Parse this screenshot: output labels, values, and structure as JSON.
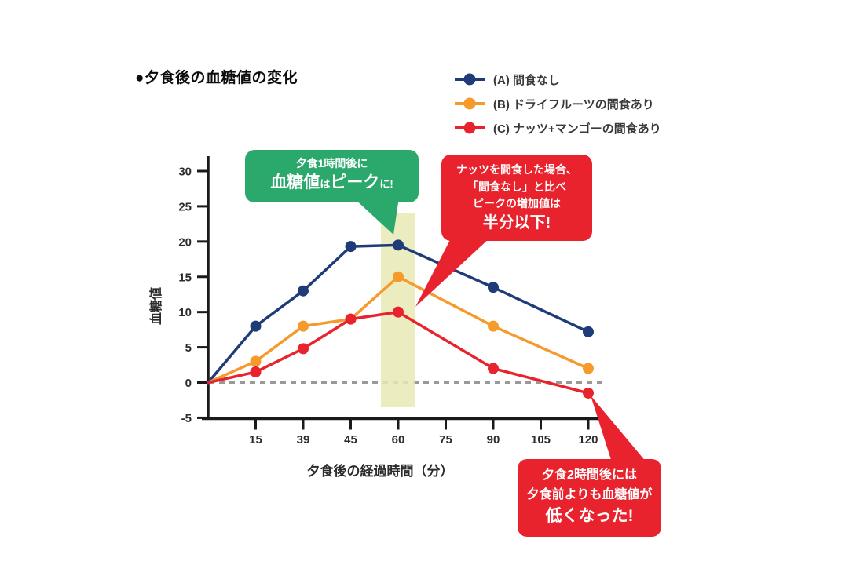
{
  "title": "●夕食後の血糖値の変化",
  "legend": {
    "items": [
      {
        "id": "A",
        "label": "(A) 間食なし",
        "color": "#1f3c78"
      },
      {
        "id": "B",
        "label": "(B) ドライフルーツの間食あり",
        "color": "#f59a2b"
      },
      {
        "id": "C",
        "label": "(C) ナッツ+マンゴーの間食あり",
        "color": "#e8232d"
      }
    ]
  },
  "chart_data": {
    "type": "line",
    "title": "夕食後の血糖値の変化",
    "xlabel": "夕食後の経過時間（分）",
    "ylabel": "血糖値",
    "x_tick_values": [
      0,
      15,
      39,
      45,
      60,
      75,
      90,
      105,
      120
    ],
    "x_tick_labels": [
      "",
      "15",
      "39",
      "45",
      "60",
      "75",
      "90",
      "105",
      "120"
    ],
    "y_ticks": [
      30,
      25,
      20,
      15,
      10,
      5,
      0,
      -5
    ],
    "ylim": [
      -5,
      30
    ],
    "grid": false,
    "legend_position": "top-right",
    "zero_line": {
      "value": 0,
      "style": "dashed",
      "color": "#999999"
    },
    "highlight_band": {
      "x_center": 60,
      "value_top": 24,
      "value_bottom": -3.5,
      "color": "#e9e9b6"
    },
    "series": [
      {
        "name": "(A) 間食なし",
        "color": "#1f3c78",
        "points": [
          [
            0,
            0
          ],
          [
            15,
            8
          ],
          [
            39,
            13
          ],
          [
            45,
            19.3
          ],
          [
            60,
            19.5
          ],
          [
            90,
            13.5
          ],
          [
            120,
            7.2
          ]
        ]
      },
      {
        "name": "(B) ドライフルーツの間食あり",
        "color": "#f59a2b",
        "points": [
          [
            0,
            0
          ],
          [
            15,
            3
          ],
          [
            39,
            8
          ],
          [
            45,
            9
          ],
          [
            60,
            15
          ],
          [
            90,
            8
          ],
          [
            120,
            2
          ]
        ]
      },
      {
        "name": "(C) ナッツ+マンゴーの間食あり",
        "color": "#e8232d",
        "points": [
          [
            0,
            0
          ],
          [
            15,
            1.5
          ],
          [
            39,
            4.8
          ],
          [
            45,
            9
          ],
          [
            60,
            10
          ],
          [
            90,
            2
          ],
          [
            120,
            -1.5
          ]
        ]
      }
    ]
  },
  "callouts": {
    "peak_green": {
      "color": "#2ba86b",
      "line1": "夕食1時間後に",
      "line2_segments": [
        {
          "text": "血糖値",
          "big": true
        },
        {
          "text": "は",
          "big": false
        },
        {
          "text": "ピーク",
          "big": true
        },
        {
          "text": "に!",
          "big": false
        }
      ]
    },
    "nuts_red": {
      "color": "#e8232d",
      "lines": [
        "ナッツを間食した場合、",
        "「間食なし」と比べ",
        "ピークの増加値は"
      ],
      "emphasis": "半分以下!"
    },
    "lower_red": {
      "color": "#e8232d",
      "lines": [
        "夕食2時間後には",
        "夕食前よりも血糖値が"
      ],
      "emphasis": "低くなった!"
    }
  },
  "colors": {
    "axis": "#1a1a1a",
    "tick_text": "#2b2b2b",
    "background": "#ffffff"
  }
}
